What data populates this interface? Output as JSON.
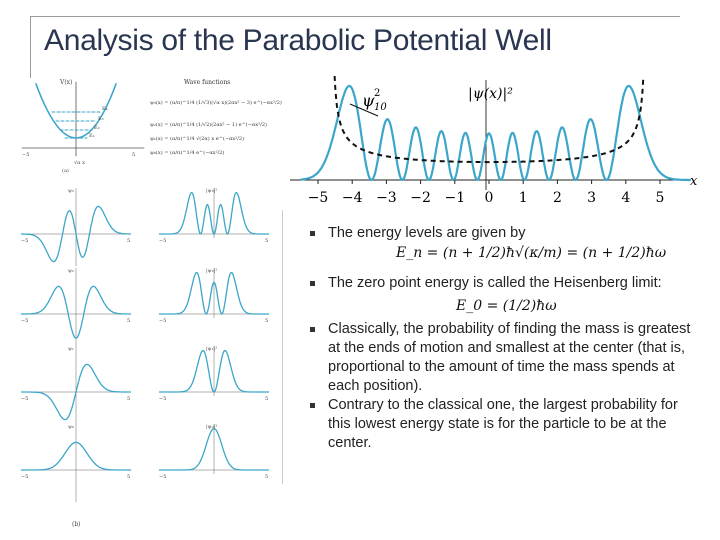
{
  "title": "Analysis of the Parabolic Potential Well",
  "bullets": [
    "The energy levels are given by",
    "The zero point energy is called the Heisenberg limit:",
    "Classically, the probability of finding the mass is greatest at the ends of motion and smallest at the center (that is, proportional to the amount of time the mass spends at each position).",
    "Contrary to the classical one, the largest probability for this lowest energy state is for the particle to be at the center."
  ],
  "equations": {
    "energy_levels": "E_n = (n + 1/2)ħ√(κ/m) = (n + 1/2)ħω",
    "zero_point": "E_0 = (1/2)ħω"
  },
  "chart_data": {
    "type": "line",
    "title": "",
    "xlabel": "x",
    "ylabel": "|ψ(x)|²",
    "xlim": [
      -5.5,
      5.9
    ],
    "x_ticks": [
      -5,
      -4,
      -3,
      -2,
      -1,
      0,
      1,
      2,
      3,
      4,
      5
    ],
    "x_tick_labels": [
      "−5",
      "−4",
      "−3",
      "−2",
      "−1",
      "0",
      "1",
      "2",
      "3",
      "4",
      "5"
    ],
    "series": [
      {
        "name": "|ψ₁₀|²",
        "style": "solid",
        "color": "#3ba6c9",
        "n": 10
      },
      {
        "name": "classical",
        "style": "dashed",
        "color": "#111111"
      }
    ],
    "annotation_labels": [
      "ψ",
      "10",
      "2",
      "|ψ(x)|²"
    ],
    "axis_label": "x"
  },
  "left_panel": {
    "graph_labels": [
      "V(x)",
      "Wave functions",
      "E₄",
      "E₃",
      "E₂",
      "E₁",
      "E₀",
      "(a)",
      "(b)",
      "ψ₃",
      "ψ₂",
      "ψ₁",
      "ψ₀",
      "|ψ₃|²",
      "|ψ₂|²",
      "|ψ₁|²",
      "|ψ₀|²",
      "√α x",
      "−5",
      "5"
    ],
    "wave_function_formulas": [
      "ψ₃(x) = (α/π)^1/4 (1/√3)(√α x)(2αx² − 3) e^(−αx²/2)",
      "ψ₂(x) = (α/π)^1/4 (1/√2)(2αx² − 1) e^(−αx²/2)",
      "ψ₁(x) = (α/π)^1/4 √(2α) x e^(−αx²/2)",
      "ψ₀(x) = (α/π)^1/4 e^(−αx²/2)"
    ]
  },
  "colors": {
    "curve": "#3ba6c9",
    "title": "#2a3550",
    "text": "#222222"
  }
}
